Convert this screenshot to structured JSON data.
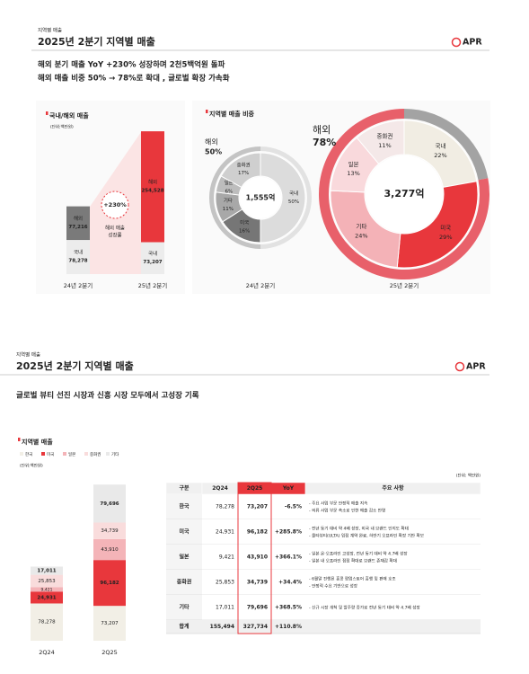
{
  "slides": [
    {
      "tag": "지역별 매출",
      "title": "2025년 2분기 지역별 매출",
      "logo": "APR",
      "headline": [
        "해외 분기 매출 YoY +230% 성장하며 2천5백억원 돌파",
        "해외 매출 비중 50% → 78%로 확대 , 글로벌 확장 가속화"
      ],
      "charts": [
        {
          "type": "bar",
          "stacked": true,
          "segment_names": true,
          "title": "국내/해외 매출",
          "unit": "(단위:백만원)",
          "categories": [
            "24년 2분기",
            "25년 2분기"
          ],
          "series": [
            {
              "name": "국내",
              "color": "#ececec",
              "values": [
                78278,
                73207
              ],
              "value_labels": [
                "78,278",
                "73,207"
              ]
            },
            {
              "name": "해외",
              "colors": [
                "#7a7a7a",
                "#e8373c"
              ],
              "values": [
                77216,
                254528
              ],
              "value_labels": [
                "77,216",
                "254,528"
              ]
            }
          ],
          "annotation": "+230%",
          "annotation_note": [
            "해외 매출",
            "성장률"
          ]
        },
        {
          "type": "donut",
          "title": "지역별 매출 비중",
          "pies": [
            {
              "category": "24년 2분기",
              "total": "1,555억",
              "overseas": {
                "name": "해외",
                "value": 50,
                "value_label": "50%",
                "color": "#c4c4c4",
                "rest_color": "#e2e2e2",
                "text_color": "#8a8a8a"
              },
              "labels": [
                "국내",
                "미국",
                "기타",
                "일본",
                "중화권"
              ],
              "values": [
                50,
                16,
                11,
                6,
                17
              ],
              "value_labels": [
                "50%",
                "16%",
                "11%",
                "6%",
                "17%"
              ],
              "colors": [
                "#dcdcdc",
                "#767676",
                "#a8a8a8",
                "#bdbdbd",
                "#cfcfcf"
              ]
            },
            {
              "category": "25년 2분기",
              "total": "3,277억",
              "overseas": {
                "name": "해외",
                "value": 78,
                "value_label": "78%",
                "color": "#e8606a",
                "rest_color": "#a3a3a3",
                "text_color": "#e8373c"
              },
              "labels": [
                "국내",
                "미국",
                "기타",
                "일본",
                "중화권"
              ],
              "values": [
                22,
                29,
                24,
                13,
                11
              ],
              "value_labels": [
                "22%",
                "29%",
                "24%",
                "13%",
                "11%"
              ],
              "colors": [
                "#f1ede3",
                "#e8373c",
                "#f4b2b7",
                "#f9d9dc",
                "#f4e8e8"
              ]
            }
          ]
        }
      ]
    },
    {
      "tag": "지역별 매출",
      "title": "2025년 2분기 지역별 매출",
      "logo": "APR",
      "headline": [
        "글로벌 뷰티 선진 시장과 신흥 시장 모두에서 고성장 기록"
      ],
      "charts": [
        {
          "type": "bar",
          "stacked": true,
          "segment_names": false,
          "title": "지역별 매출",
          "unit": "(단위:백만원)",
          "categories": [
            "2Q24",
            "2Q25"
          ],
          "series": [
            {
              "name": "한국",
              "color": "#f2efe6",
              "label_color": "#9a9a9a",
              "values": [
                78278,
                73207
              ],
              "value_labels": [
                "78,278",
                "73,207"
              ]
            },
            {
              "name": "미국",
              "color": "#e8373c",
              "label_color": "#ffffff",
              "values": [
                24931,
                96182
              ],
              "value_labels": [
                "24,931",
                "96,182"
              ]
            },
            {
              "name": "일본",
              "color": "#f4b4b8",
              "label_color": "#9a9a9a",
              "values": [
                9421,
                43910
              ],
              "value_labels": [
                "9,421",
                "43,910"
              ]
            },
            {
              "name": "중화권",
              "color": "#f9dcdc",
              "label_color": "#9a9a9a",
              "values": [
                25853,
                34739
              ],
              "value_labels": [
                "25,853",
                "34,739"
              ]
            },
            {
              "name": "기타",
              "color": "#e9e9e9",
              "label_color": "#333333",
              "values": [
                17011,
                79696
              ],
              "value_labels": [
                "17,011",
                "79,696"
              ]
            }
          ]
        }
      ],
      "table": {
        "unit": "(단위: 백만원)",
        "header": [
          "구분",
          "2Q24",
          "2Q25",
          "YoY",
          "주요 사항"
        ],
        "rows": [
          [
            "한국",
            "78,278",
            "73,207",
            "-6.5%",
            [
              "- 주요 사업 부문 안정적 매출 지속",
              "- 의류 사업 부문 축소로 인한 매출 감소 반영"
            ]
          ],
          [
            "미국",
            "24,931",
            "96,182",
            "+285.8%",
            [
              "- 전년 동기 대비 약 4배 성장, 미국 내 브랜드 인지도 확대",
              "- 울타뷰티(ULTA) 입점 계약 완료, 하반기 오프라인 확장 기반 확보"
            ]
          ],
          [
            "일본",
            "9,421",
            "43,910",
            "+366.1%",
            [
              "- 일본 온·오프라인 고성장, 전년 동기 대비 약 4.7배 성장",
              "- 일본 내 오프라인 접점 확대로 브랜드 존재감 확대"
            ]
          ],
          [
            "중화권",
            "25,853",
            "34,739",
            "+34.4%",
            [
              "- 6월말 진행된 홍콩 팝업스토어 흥행 및 판매 호조",
              "- 안정적 수요 기반으로 성장"
            ]
          ],
          [
            "기타",
            "17,011",
            "79,696",
            "+368.5%",
            [
              "- 신규 시장 개척 및 발주량 증가로 전년 동기 대비 약 4.7배 성장"
            ]
          ]
        ],
        "total": [
          "합계",
          "155,494",
          "327,734",
          "+110.8%"
        ]
      }
    }
  ]
}
